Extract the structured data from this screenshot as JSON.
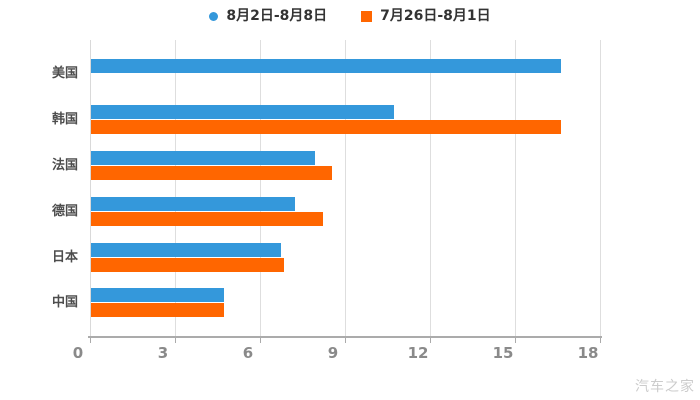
{
  "chart_data": {
    "type": "bar",
    "orientation": "horizontal",
    "title": "",
    "categories": [
      "美国",
      "韩国",
      "法国",
      "德国",
      "日本",
      "中国"
    ],
    "series": [
      {
        "name": "8月2日-8月8日",
        "color": "#3498db",
        "marker": "circle",
        "values": [
          16.6,
          10.7,
          7.9,
          7.2,
          6.7,
          4.7
        ]
      },
      {
        "name": "7月26日-8月1日",
        "color": "#ff6600",
        "marker": "square",
        "values": [
          null,
          16.6,
          8.5,
          8.2,
          6.8,
          4.7
        ]
      }
    ],
    "xlim": [
      0,
      18
    ],
    "xticks": [
      0,
      3,
      6,
      9,
      12,
      15,
      18
    ],
    "grid": true,
    "legend_position": "top-center",
    "xlabel": "",
    "ylabel": ""
  },
  "watermark": "汽车之家",
  "colors": {
    "series_blue": "#3498db",
    "series_orange": "#ff6600",
    "gridline": "#dedede",
    "axis": "#ababab",
    "tick_label": "#8a8a8a",
    "category_label": "#4d4d4d",
    "legend_text": "#333333",
    "watermark": "#cccccc"
  }
}
